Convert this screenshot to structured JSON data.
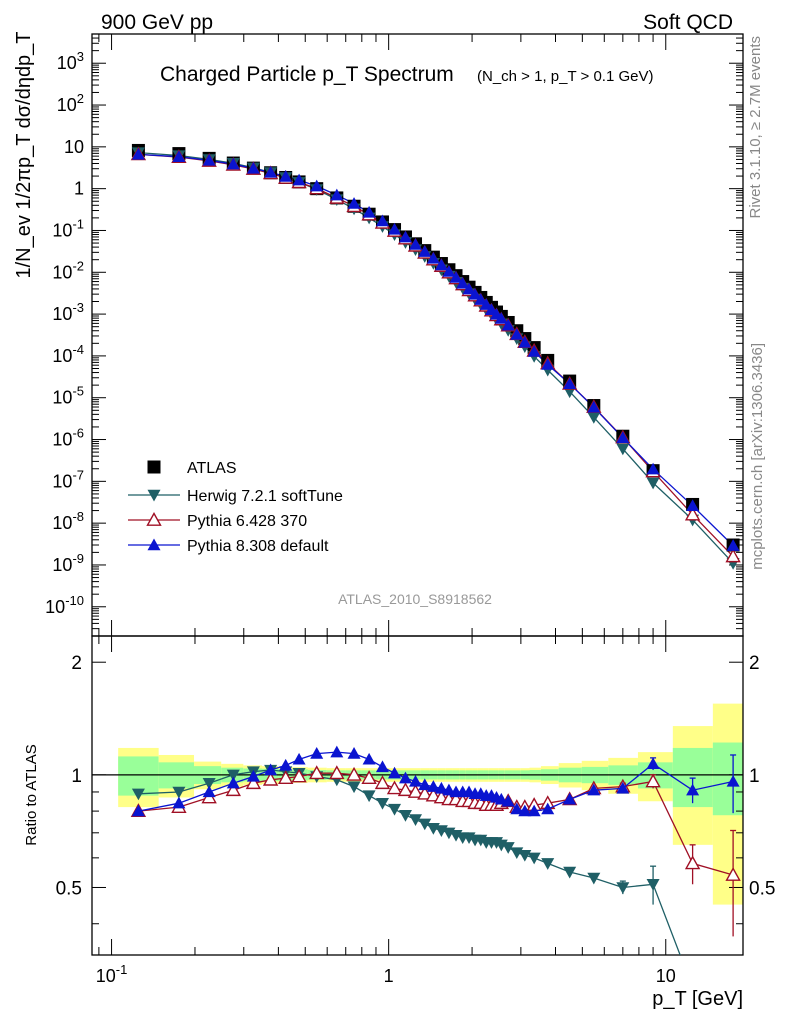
{
  "header": {
    "left": "900 GeV pp",
    "right": "Soft QCD"
  },
  "side_text": {
    "rivet": "Rivet 3.1.10, ≥ 2.7M events",
    "source": "mcplots.cern.ch [arXiv:1306.3436]"
  },
  "colors": {
    "atlas": "#000000",
    "herwig": "#1f5f66",
    "pythia6": "#a01025",
    "pythia8": "#0a14d0",
    "band_inner": "#99ff99",
    "band_outer": "#ffff88"
  },
  "chart_data": [
    {
      "type": "scatter",
      "title": "Charged Particle p_T Spectrum",
      "subtitle": "(N_ch > 1, p_T > 0.1 GeV)",
      "analysis_label": "ATLAS_2010_S8918562",
      "xlabel": "p_T [GeV]",
      "ylabel": "1/N_ev 1/2πp_T dσ/dηdp_T",
      "xscale": "log",
      "yscale": "log",
      "xlim": [
        0.085,
        19
      ],
      "ylim": [
        2e-11,
        5000
      ],
      "ytick_labels": [
        "10^-10",
        "10^-9",
        "10^-8",
        "10^-7",
        "10^-6",
        "10^-5",
        "10^-4",
        "10^-3",
        "10^-2",
        "10^-1",
        "1",
        "10",
        "10^2",
        "10^3"
      ],
      "legend_position": "bottom-left",
      "x": [
        0.125,
        0.175,
        0.225,
        0.275,
        0.325,
        0.375,
        0.425,
        0.475,
        0.55,
        0.65,
        0.75,
        0.85,
        0.95,
        1.05,
        1.15,
        1.25,
        1.35,
        1.45,
        1.55,
        1.65,
        1.75,
        1.85,
        1.95,
        2.05,
        2.15,
        2.25,
        2.35,
        2.45,
        2.55,
        2.7,
        2.9,
        3.1,
        3.35,
        3.75,
        4.5,
        5.5,
        7.0,
        9.0,
        12.5,
        17.5
      ],
      "series": [
        {
          "name": "ATLAS",
          "marker": "square",
          "y": [
            8.2,
            6.9,
            5.3,
            4.1,
            3.1,
            2.4,
            1.85,
            1.45,
            1.0,
            0.6,
            0.38,
            0.245,
            0.16,
            0.105,
            0.07,
            0.048,
            0.033,
            0.023,
            0.0162,
            0.0115,
            0.0083,
            0.006,
            0.0044,
            0.0033,
            0.0025,
            0.0019,
            0.00145,
            0.00112,
            0.00088,
            0.00063,
            0.0004,
            0.00026,
            0.000158,
            7.8e-05,
            2.5e-05,
            6.5e-06,
            1.2e-06,
            1.8e-07,
            2.8e-08,
            3e-09
          ]
        },
        {
          "name": "Herwig 7.2.1 softTune",
          "marker": "triangle-down",
          "y": [
            7.3,
            6.2,
            5.0,
            4.05,
            3.15,
            2.45,
            1.85,
            1.42,
            0.96,
            0.55,
            0.33,
            0.2,
            0.125,
            0.08,
            0.052,
            0.035,
            0.024,
            0.0165,
            0.0115,
            0.0081,
            0.0058,
            0.0042,
            0.0031,
            0.0023,
            0.0017,
            0.00128,
            0.00098,
            0.00075,
            0.00059,
            0.00041,
            0.00026,
            0.000168,
            9.8e-05,
            4.6e-05,
            1.4e-05,
            3.4e-06,
            6e-07,
            9.2e-08,
            1.2e-08,
            1.1e-09
          ]
        },
        {
          "name": "Pythia 6.428 370",
          "marker": "triangle-up-open",
          "y": [
            6.6,
            5.7,
            4.6,
            3.7,
            2.95,
            2.32,
            1.8,
            1.42,
            1.01,
            0.6,
            0.38,
            0.24,
            0.152,
            0.097,
            0.064,
            0.043,
            0.0292,
            0.0201,
            0.0141,
            0.0098,
            0.0071,
            0.0051,
            0.0037,
            0.00277,
            0.0021,
            0.00158,
            0.00121,
            0.00093,
            0.00074,
            0.00053,
            0.00033,
            0.000214,
            0.000132,
            6.6e-05,
            2.15e-05,
            6e-06,
            1.12e-06,
            1.72e-07,
            1.6e-08,
            1.6e-09
          ]
        },
        {
          "name": "Pythia 8.308 default",
          "marker": "triangle-up",
          "y": [
            6.6,
            5.8,
            4.75,
            3.85,
            3.05,
            2.45,
            1.95,
            1.6,
            1.15,
            0.7,
            0.44,
            0.27,
            0.168,
            0.106,
            0.069,
            0.046,
            0.0312,
            0.0214,
            0.0149,
            0.0104,
            0.0075,
            0.0054,
            0.00395,
            0.00295,
            0.00222,
            0.00168,
            0.00127,
            0.00098,
            0.00078,
            0.00054,
            0.000325,
            0.00021,
            0.000127,
            6.2e-05,
            2.15e-05,
            5.9e-06,
            1.1e-06,
            1.95e-07,
            2.6e-08,
            2.9e-09
          ]
        }
      ]
    },
    {
      "type": "line",
      "ylabel": "Ratio to ATLAS",
      "xlabel": "p_T [GeV]",
      "xscale": "log",
      "xlim": [
        0.085,
        19
      ],
      "ylim": [
        0.33,
        2.35
      ],
      "x_tick_labels": [
        "10^-1",
        "1",
        "10"
      ],
      "y_tick_labels": [
        "0.5",
        "1",
        "2"
      ],
      "reference_line": 1,
      "uncertainty_band": {
        "x": [
          0.125,
          0.175,
          0.225,
          0.275,
          0.325,
          0.375,
          0.425,
          0.475,
          0.55,
          0.65,
          0.75,
          0.85,
          0.95,
          1.05,
          1.15,
          1.25,
          1.35,
          1.45,
          1.55,
          1.65,
          1.75,
          1.85,
          1.95,
          2.05,
          2.15,
          2.25,
          2.35,
          2.45,
          2.55,
          2.7,
          2.9,
          3.1,
          3.35,
          3.75,
          4.5,
          5.5,
          7.0,
          9.0,
          12.5,
          17.5
        ],
        "inner": [
          0.12,
          0.08,
          0.055,
          0.045,
          0.04,
          0.038,
          0.036,
          0.034,
          0.03,
          0.028,
          0.028,
          0.028,
          0.028,
          0.028,
          0.028,
          0.028,
          0.028,
          0.028,
          0.028,
          0.028,
          0.028,
          0.028,
          0.028,
          0.028,
          0.028,
          0.028,
          0.028,
          0.028,
          0.028,
          0.028,
          0.028,
          0.028,
          0.03,
          0.035,
          0.045,
          0.05,
          0.06,
          0.08,
          0.18,
          0.22
        ],
        "outer": [
          0.18,
          0.13,
          0.085,
          0.07,
          0.06,
          0.055,
          0.05,
          0.048,
          0.045,
          0.042,
          0.042,
          0.042,
          0.042,
          0.042,
          0.042,
          0.042,
          0.042,
          0.042,
          0.042,
          0.042,
          0.042,
          0.042,
          0.042,
          0.042,
          0.042,
          0.042,
          0.042,
          0.042,
          0.042,
          0.042,
          0.042,
          0.042,
          0.045,
          0.055,
          0.075,
          0.09,
          0.11,
          0.15,
          0.35,
          0.55
        ]
      },
      "series": [
        {
          "name": "Herwig 7.2.1 softTune",
          "x": [
            0.125,
            0.175,
            0.225,
            0.275,
            0.325,
            0.375,
            0.425,
            0.475,
            0.55,
            0.65,
            0.75,
            0.85,
            0.95,
            1.05,
            1.15,
            1.25,
            1.35,
            1.45,
            1.55,
            1.65,
            1.75,
            1.85,
            1.95,
            2.05,
            2.15,
            2.25,
            2.35,
            2.45,
            2.55,
            2.7,
            2.9,
            3.1,
            3.35,
            3.75,
            4.5,
            5.5,
            7.0,
            9.0,
            12.5
          ],
          "y": [
            0.89,
            0.9,
            0.95,
            1.0,
            1.02,
            1.03,
            1.02,
            1.01,
            0.99,
            0.97,
            0.93,
            0.88,
            0.84,
            0.81,
            0.78,
            0.76,
            0.74,
            0.72,
            0.71,
            0.7,
            0.69,
            0.68,
            0.68,
            0.67,
            0.67,
            0.66,
            0.66,
            0.66,
            0.65,
            0.64,
            0.62,
            0.61,
            0.6,
            0.58,
            0.55,
            0.53,
            0.5,
            0.51,
            0.27
          ],
          "yerr": [
            0,
            0,
            0,
            0,
            0,
            0,
            0,
            0,
            0,
            0,
            0,
            0,
            0,
            0,
            0,
            0,
            0,
            0,
            0,
            0,
            0,
            0,
            0,
            0,
            0,
            0,
            0,
            0,
            0,
            0,
            0,
            0,
            0,
            0,
            0,
            0,
            0.02,
            0.06,
            0
          ]
        },
        {
          "name": "Pythia 6.428 370",
          "x": [
            0.125,
            0.175,
            0.225,
            0.275,
            0.325,
            0.375,
            0.425,
            0.475,
            0.55,
            0.65,
            0.75,
            0.85,
            0.95,
            1.05,
            1.15,
            1.25,
            1.35,
            1.45,
            1.55,
            1.65,
            1.75,
            1.85,
            1.95,
            2.05,
            2.15,
            2.25,
            2.35,
            2.45,
            2.55,
            2.7,
            2.9,
            3.1,
            3.35,
            3.75,
            4.5,
            5.5,
            7.0,
            9.0,
            12.5,
            17.5
          ],
          "y": [
            0.8,
            0.82,
            0.87,
            0.91,
            0.95,
            0.97,
            0.98,
            0.99,
            1.01,
            1.01,
            1.0,
            0.98,
            0.95,
            0.92,
            0.91,
            0.9,
            0.89,
            0.88,
            0.87,
            0.86,
            0.86,
            0.85,
            0.85,
            0.84,
            0.84,
            0.83,
            0.83,
            0.83,
            0.84,
            0.85,
            0.82,
            0.82,
            0.83,
            0.84,
            0.86,
            0.92,
            0.93,
            0.96,
            0.58,
            0.54
          ],
          "yerr": [
            0,
            0,
            0,
            0,
            0,
            0,
            0,
            0,
            0,
            0,
            0,
            0,
            0,
            0,
            0,
            0,
            0,
            0,
            0,
            0,
            0,
            0,
            0,
            0,
            0,
            0,
            0,
            0,
            0,
            0,
            0,
            0,
            0,
            0,
            0,
            0,
            0.02,
            0.04,
            0.07,
            0.17
          ]
        },
        {
          "name": "Pythia 8.308 default",
          "x": [
            0.125,
            0.175,
            0.225,
            0.275,
            0.325,
            0.375,
            0.425,
            0.475,
            0.55,
            0.65,
            0.75,
            0.85,
            0.95,
            1.05,
            1.15,
            1.25,
            1.35,
            1.45,
            1.55,
            1.65,
            1.75,
            1.85,
            1.95,
            2.05,
            2.15,
            2.25,
            2.35,
            2.45,
            2.55,
            2.7,
            2.9,
            3.1,
            3.35,
            3.75,
            4.5,
            5.5,
            7.0,
            9.0,
            12.5,
            17.5
          ],
          "y": [
            0.8,
            0.84,
            0.9,
            0.95,
            0.99,
            1.03,
            1.06,
            1.1,
            1.14,
            1.15,
            1.14,
            1.1,
            1.05,
            1.01,
            0.98,
            0.96,
            0.94,
            0.93,
            0.92,
            0.91,
            0.9,
            0.9,
            0.9,
            0.89,
            0.89,
            0.88,
            0.88,
            0.87,
            0.86,
            0.85,
            0.81,
            0.8,
            0.8,
            0.81,
            0.86,
            0.91,
            0.92,
            1.07,
            0.91,
            0.96
          ],
          "yerr": [
            0,
            0,
            0,
            0,
            0,
            0,
            0,
            0,
            0,
            0,
            0,
            0,
            0,
            0,
            0,
            0,
            0,
            0,
            0,
            0,
            0,
            0,
            0,
            0,
            0,
            0,
            0,
            0,
            0,
            0,
            0,
            0,
            0,
            0,
            0,
            0,
            0.01,
            0.04,
            0.07,
            0.17
          ]
        }
      ]
    }
  ]
}
